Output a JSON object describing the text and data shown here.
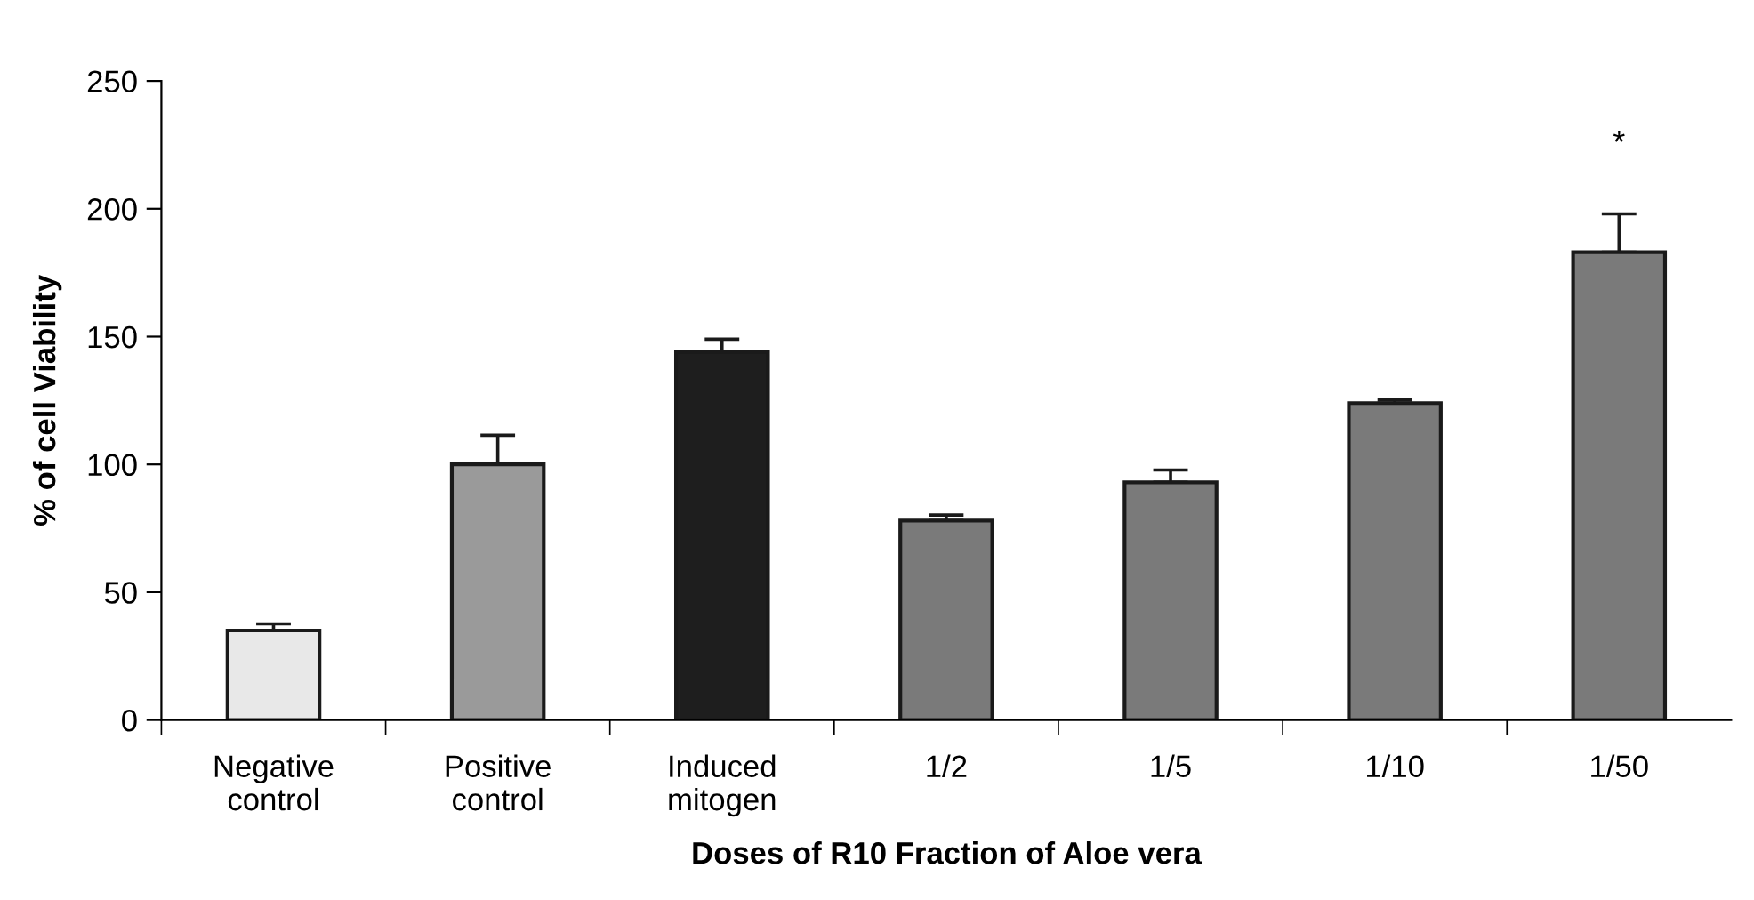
{
  "chart_data": {
    "type": "bar",
    "xlabel": "Doses of R10 Fraction of Aloe vera",
    "ylabel": "% of cell Viability",
    "categories": [
      "Negative\ncontrol",
      "Positive\ncontrol",
      "Induced\nmitogen",
      "1/2",
      "1/5",
      "1/10",
      "1/50"
    ],
    "values": [
      35,
      100,
      144,
      78,
      93,
      124,
      183
    ],
    "colors": [
      "#e8e8e8",
      "#9a9a9a",
      "#1e1e1e",
      "#7a7a7a",
      "#7a7a7a",
      "#7a7a7a",
      "#7a7a7a"
    ],
    "errors": [
      [
        35,
        37.6
      ],
      [
        100,
        111.4
      ],
      [
        144,
        149
      ],
      [
        78,
        80.2
      ],
      [
        93,
        97.8
      ],
      [
        124,
        125.2
      ],
      [
        183,
        198
      ]
    ],
    "annotations": [
      {
        "text": "*",
        "x": "1/50",
        "y": 198
      }
    ],
    "ylim": [
      0,
      250
    ],
    "yticks": [
      0,
      50,
      100,
      150,
      200,
      250
    ],
    "grid": false,
    "legend": false
  }
}
